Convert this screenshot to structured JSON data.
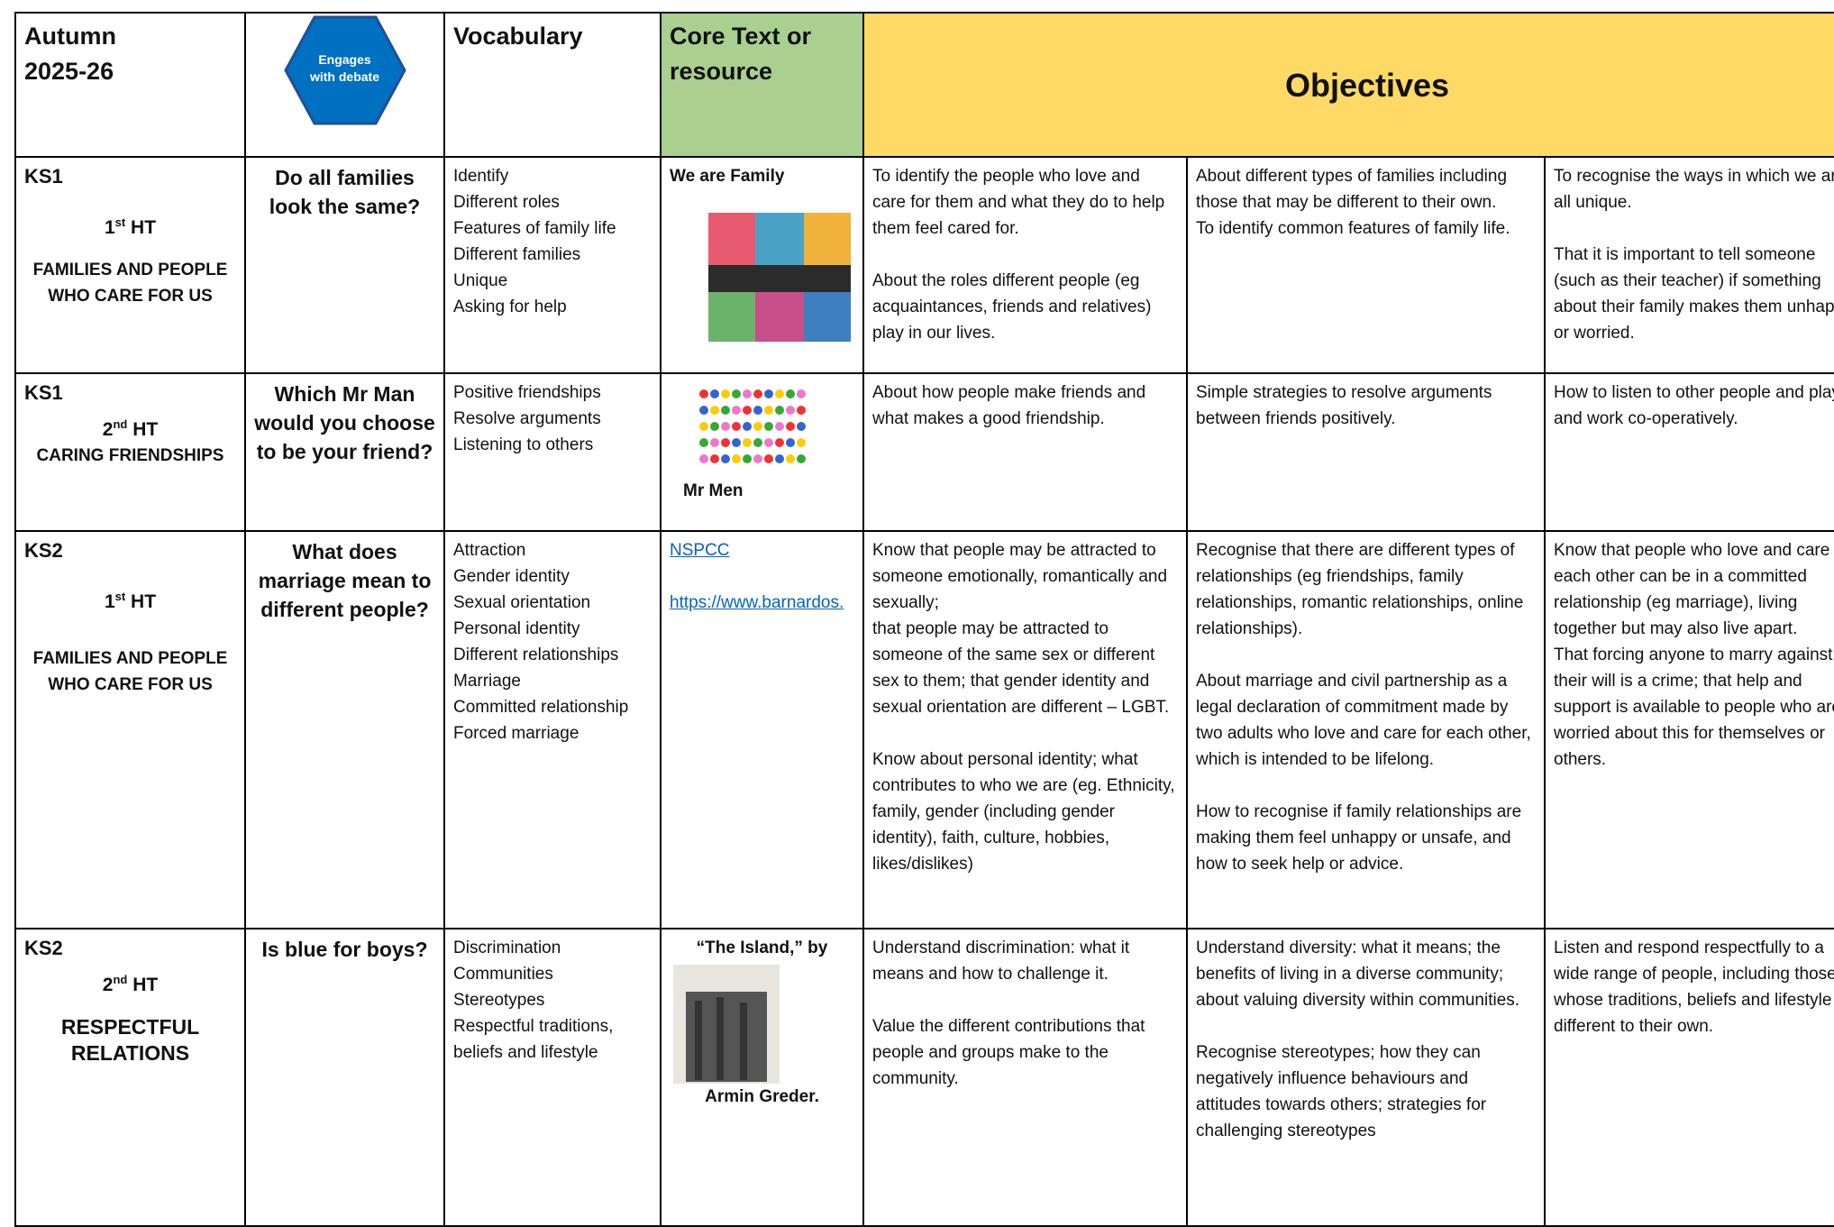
{
  "header": {
    "term": [
      "Autumn",
      "2025-26"
    ],
    "icon_label": "Engages with debate",
    "vocabulary": "Vocabulary",
    "core_text": "Core Text or resource",
    "objectives": "Objectives"
  },
  "rows": [
    {
      "key_stage": "KS1",
      "half_term": {
        "number": "1",
        "suffix": "st",
        "text": "HT"
      },
      "topic": "FAMILIES AND PEOPLE WHO CARE FOR US",
      "question": "Do all families look the same?",
      "vocabulary": [
        "Identify",
        "Different roles",
        "Features of family life",
        "Different families",
        "Unique",
        "Asking for help"
      ],
      "resource": {
        "title": "We are Family"
      },
      "objectives": [
        [
          [
            "To identify the people who love and care for them and what they do to help them feel cared for."
          ],
          [
            "About the roles different people (eg acquaintances, friends and relatives) play in our lives."
          ]
        ],
        [
          [
            "About different types of families including those that may be different to their own.",
            "To identify common features of family life."
          ]
        ],
        [
          [
            "To recognise the ways in which we are all unique."
          ],
          [
            "That it is important to tell someone (such as their teacher) if something about their family makes them unhappy or worried."
          ]
        ]
      ]
    },
    {
      "key_stage": "KS1",
      "half_term": {
        "number": "2",
        "suffix": "nd",
        "text": "HT"
      },
      "topic": "CARING FRIENDSHIPS",
      "question": "Which Mr Man would you choose to be your friend?",
      "vocabulary": [
        "Positive friendships",
        "Resolve arguments",
        "Listening to others"
      ],
      "resource": {
        "caption": "Mr Men"
      },
      "objectives": [
        [
          [
            "About how people make friends and what makes a good friendship."
          ]
        ],
        [
          [
            "Simple strategies to resolve arguments between friends positively."
          ]
        ],
        [
          [
            "How to listen to other people and play and work co-operatively."
          ]
        ]
      ]
    },
    {
      "key_stage": "KS2",
      "half_term": {
        "number": "1",
        "suffix": "st",
        "text": "HT"
      },
      "topic": "FAMILIES AND PEOPLE WHO CARE FOR US",
      "question": "What does marriage mean to different people?",
      "vocabulary": [
        "Attraction",
        "Gender identity",
        "Sexual orientation",
        "Personal identity",
        "Different relationships",
        "Marriage",
        "Committed relationship",
        "Forced marriage"
      ],
      "resource": {
        "links": [
          "NSPCC",
          "https://www.barnardos."
        ]
      },
      "objectives": [
        [
          [
            "Know that people may be attracted to someone emotionally, romantically and sexually;",
            "that people may be attracted to someone of the same sex or different sex to them; that gender identity and sexual orientation are different – LGBT."
          ],
          [
            "Know about personal identity; what contributes to who we are (eg. Ethnicity, family, gender (including gender identity), faith, culture, hobbies, likes/dislikes)"
          ]
        ],
        [
          [
            "Recognise that there are different types of relationships (eg friendships, family relationships, romantic relationships, online relationships)."
          ],
          [
            "About marriage and civil partnership as a legal declaration of commitment made by two adults who love and care for each other, which is intended to be lifelong."
          ],
          [
            "How to recognise if family relationships are making them feel unhappy or unsafe, and how to seek help or advice."
          ]
        ],
        [
          [
            "Know that people who love and care for each other can be in a committed relationship (eg marriage), living together but may also live apart.",
            "That forcing anyone to marry against their will is a crime; that help and support is available to people who are worried about this for themselves or others."
          ]
        ]
      ]
    },
    {
      "key_stage": "KS2",
      "half_term": {
        "number": "2",
        "suffix": "nd",
        "text": "HT"
      },
      "topic": "RESPECTFUL RELATIONS",
      "question": "Is blue for boys?",
      "vocabulary": [
        "Discrimination",
        "Communities",
        "Stereotypes",
        "Respectful traditions, beliefs and lifestyle"
      ],
      "resource": {
        "title": "“The Island,” by",
        "caption": "Armin Greder."
      },
      "objectives": [
        [
          [
            "Understand discrimination: what it means and how to challenge it."
          ],
          [
            "Value the different contributions that people and groups make to the community."
          ]
        ],
        [
          [
            "Understand diversity: what it means; the benefits of living in a diverse community; about valuing diversity within communities."
          ],
          [
            "Recognise stereotypes; how they can negatively influence behaviours and attitudes towards others; strategies for challenging stereotypes"
          ]
        ],
        [
          [
            "Listen and respond respectfully to a wide range of people, including those whose traditions, beliefs and lifestyle are different to their own."
          ]
        ]
      ]
    }
  ]
}
